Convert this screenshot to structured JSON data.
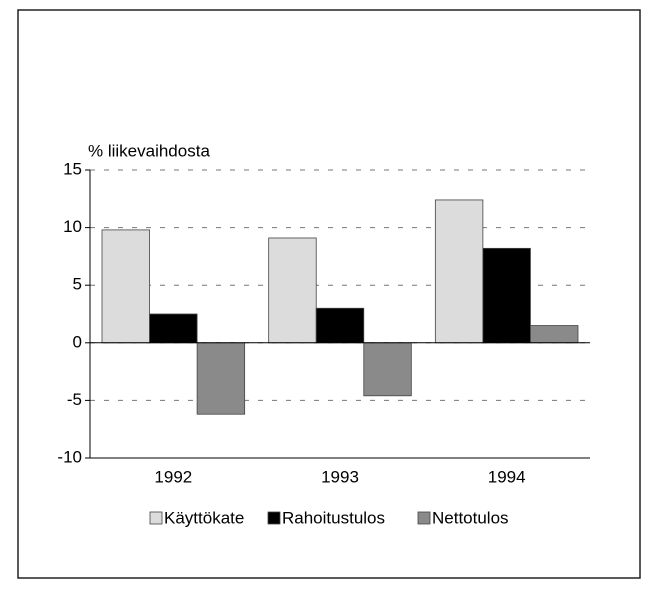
{
  "chart_data": {
    "type": "bar",
    "y_label": "% liikevaihdosta",
    "categories": [
      "1992",
      "1993",
      "1994"
    ],
    "series": [
      {
        "name": "Käyttökate",
        "color": "#dcdcdc",
        "values": [
          9.8,
          9.1,
          12.4
        ]
      },
      {
        "name": "Rahoitustulos",
        "color": "#000000",
        "values": [
          2.5,
          3.0,
          8.2
        ]
      },
      {
        "name": "Nettotulos",
        "color": "#8a8a8a",
        "values": [
          -6.2,
          -4.6,
          1.5
        ]
      }
    ],
    "ylim": [
      -10,
      15
    ],
    "yticks": [
      -10,
      -5,
      0,
      5,
      10,
      15
    ],
    "grid": true
  }
}
